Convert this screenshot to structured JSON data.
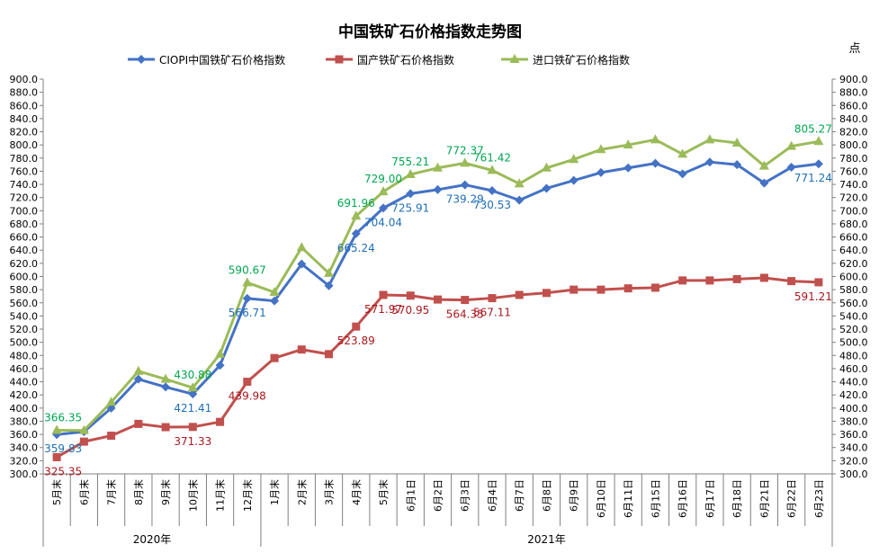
{
  "chart_data": {
    "type": "line",
    "title": "中国铁矿石价格指数走势图",
    "unit_label": "点",
    "ylim": [
      300,
      900
    ],
    "ytick_step": 20,
    "grid": false,
    "legend_position": "top",
    "categories": [
      "5月末",
      "6月末",
      "7月末",
      "8月末",
      "9月末",
      "10月末",
      "11月末",
      "12月末",
      "1月末",
      "2月末",
      "3月末",
      "4月末",
      "5月末",
      "6月1日",
      "6月2日",
      "6月3日",
      "6月4日",
      "6月7日",
      "6月8日",
      "6月9日",
      "6月10日",
      "6月11日",
      "6月15日",
      "6月16日",
      "6月17日",
      "6月18日",
      "6月21日",
      "6月22日",
      "6月23日"
    ],
    "year_groups": [
      {
        "label": "2020年",
        "start": 0,
        "end": 7
      },
      {
        "label": "2021年",
        "start": 8,
        "end": 28
      }
    ],
    "series": [
      {
        "name": "CIOPI中国铁矿石价格指数",
        "color": "#4472C4",
        "marker": "diamond",
        "values": [
          359.83,
          364,
          400,
          444,
          432,
          421.41,
          465,
          566.71,
          563,
          619,
          586,
          665.24,
          704.04,
          725.91,
          732,
          739.29,
          730.53,
          716,
          734,
          746,
          758,
          765,
          772,
          756,
          774,
          770,
          742,
          766,
          771.24
        ],
        "label_color": "#1F6EB5",
        "labels": [
          {
            "index": 0,
            "text": "359.83"
          },
          {
            "index": 5,
            "text": "421.41"
          },
          {
            "index": 7,
            "text": "566.71"
          },
          {
            "index": 11,
            "text": "665.24"
          },
          {
            "index": 12,
            "text": "704.04"
          },
          {
            "index": 13,
            "text": "725.91"
          },
          {
            "index": 15,
            "text": "739.29"
          },
          {
            "index": 16,
            "text": "730.53"
          },
          {
            "index": 28,
            "text": "771.24"
          }
        ]
      },
      {
        "name": "国产铁矿石价格指数",
        "color": "#C0504D",
        "marker": "square",
        "values": [
          325.35,
          349,
          358,
          376,
          371,
          371.33,
          379,
          439.98,
          476,
          489,
          482,
          523.89,
          571.97,
          570.95,
          565,
          564.35,
          567.11,
          572,
          575,
          580,
          580,
          582,
          583,
          594,
          594,
          596,
          598,
          593,
          591.21
        ],
        "label_color": "#A8181E",
        "labels": [
          {
            "index": 0,
            "text": "325.35"
          },
          {
            "index": 5,
            "text": "371.33"
          },
          {
            "index": 7,
            "text": "439.98"
          },
          {
            "index": 11,
            "text": "523.89"
          },
          {
            "index": 12,
            "text": "571.97"
          },
          {
            "index": 13,
            "text": "570.95"
          },
          {
            "index": 15,
            "text": "564.35"
          },
          {
            "index": 16,
            "text": "567.11"
          },
          {
            "index": 28,
            "text": "591.21"
          }
        ]
      },
      {
        "name": "进口铁矿石价格指数",
        "color": "#9BBB59",
        "marker": "triangle",
        "values": [
          366.35,
          366,
          409,
          456,
          444,
          430.88,
          482,
          590.67,
          576,
          644,
          605,
          691.96,
          729.0,
          755.21,
          765,
          772.37,
          761.42,
          741,
          765,
          778,
          793,
          800,
          808,
          786,
          808,
          803,
          768,
          798,
          805.27
        ],
        "label_color": "#00A651",
        "labels": [
          {
            "index": 0,
            "text": "366.35"
          },
          {
            "index": 5,
            "text": "430.88"
          },
          {
            "index": 7,
            "text": "590.67"
          },
          {
            "index": 11,
            "text": "691.96"
          },
          {
            "index": 12,
            "text": "729.00"
          },
          {
            "index": 13,
            "text": "755.21"
          },
          {
            "index": 15,
            "text": "772.37"
          },
          {
            "index": 16,
            "text": "761.42"
          },
          {
            "index": 28,
            "text": "805.27"
          }
        ]
      }
    ]
  }
}
